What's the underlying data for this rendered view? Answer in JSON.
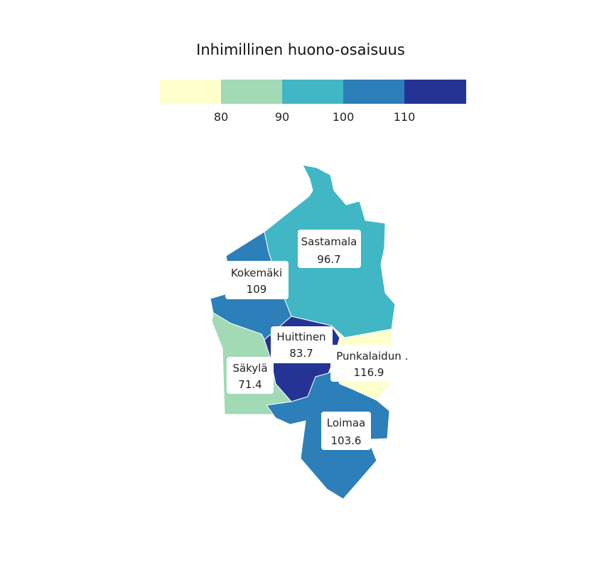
{
  "title": "Inhimillinen huono-osaisuus",
  "legend": {
    "colors": [
      "#ffffcc",
      "#a1dab4",
      "#41b6c4",
      "#2c7fb8",
      "#253494"
    ],
    "ticks": [
      "80",
      "90",
      "100",
      "110"
    ]
  },
  "regions": [
    {
      "name": "Sastamala",
      "value": "96.7",
      "color": "#41b6c4"
    },
    {
      "name": "Kokemäki",
      "value": "109",
      "color": "#2c7fb8"
    },
    {
      "name": "Huittinen",
      "value": "83.7",
      "color": "#a1dab4"
    },
    {
      "name": "Punkalaidun",
      "value": "116.9",
      "color": "#253494"
    },
    {
      "name": "Säkylä",
      "value": "71.4",
      "color": "#ffffcc"
    },
    {
      "name": "Loimaa",
      "value": "103.6",
      "color": "#2c7fb8"
    }
  ],
  "extra_text": "."
}
